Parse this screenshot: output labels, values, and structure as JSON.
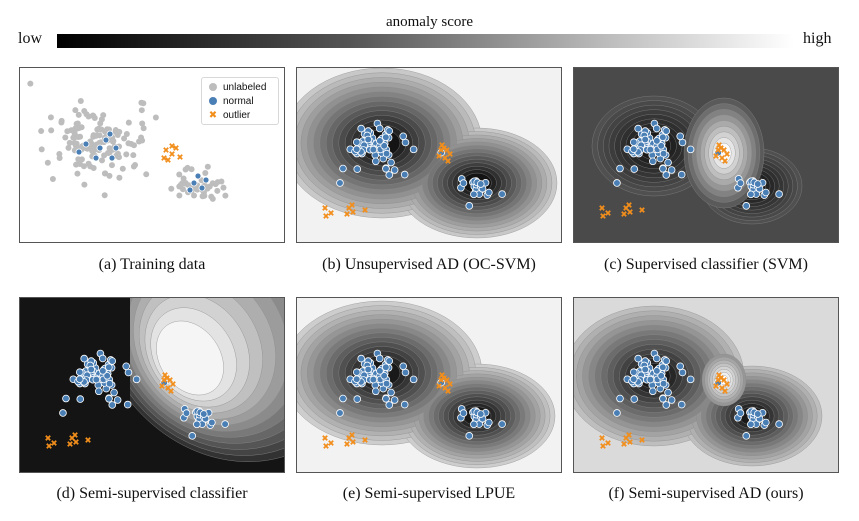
{
  "colorbar": {
    "title": "anomaly score",
    "low": "low",
    "high": "high"
  },
  "legend": {
    "unlabeled": "unlabeled",
    "normal": "normal",
    "outlier": "outlier"
  },
  "colors": {
    "unlabeled": "#bdbdbd",
    "normal": "#4a7fb5",
    "outlier": "#f28e1c"
  },
  "panels": [
    {
      "id": "a",
      "caption": "(a) Training data",
      "style": "training"
    },
    {
      "id": "b",
      "caption": "(b) Unsupervised AD (OC-SVM)",
      "style": "ocsvm"
    },
    {
      "id": "c",
      "caption": "(c) Supervised classifier (SVM)",
      "style": "svm"
    },
    {
      "id": "d",
      "caption": "(d) Semi-supervised classifier",
      "style": "semiclf"
    },
    {
      "id": "e",
      "caption": "(e) Semi-supervised LPUE",
      "style": "lpue"
    },
    {
      "id": "f",
      "caption": "(f) Semi-supervised AD (ours)",
      "style": "ours"
    }
  ]
}
